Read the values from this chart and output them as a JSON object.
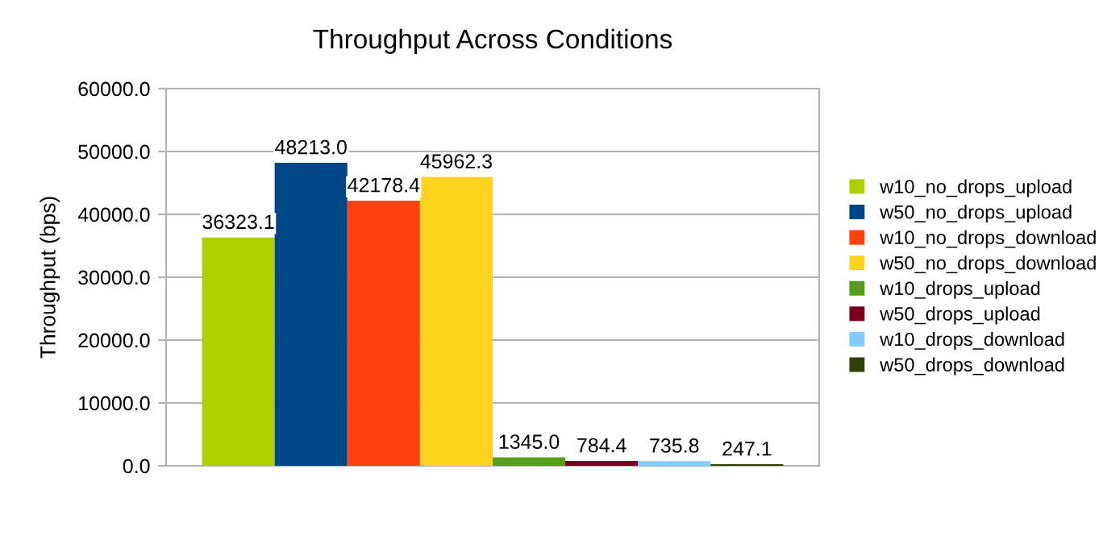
{
  "chart_data": {
    "type": "bar",
    "title": "Throughput Across Conditions",
    "ylabel": "Throughput (bps)",
    "categories": [
      null
    ],
    "series": [
      {
        "name": "w10_no_drops_upload",
        "color": "#aecf00",
        "values": [
          36323.1
        ],
        "value_labels": [
          "36323.1"
        ]
      },
      {
        "name": "w50_no_drops_upload",
        "color": "#004586",
        "values": [
          48213
        ],
        "value_labels": [
          "48213.0"
        ]
      },
      {
        "name": "w10_no_drops_download",
        "color": "#ff420e",
        "values": [
          42178.4
        ],
        "value_labels": [
          "42178.4"
        ]
      },
      {
        "name": "w50_no_drops_download",
        "color": "#ffd320",
        "values": [
          45962.3
        ],
        "value_labels": [
          "45962.3"
        ]
      },
      {
        "name": "w10_drops_upload",
        "color": "#579d1c",
        "values": [
          1345
        ],
        "value_labels": [
          "1345.0"
        ]
      },
      {
        "name": "w50_drops_upload",
        "color": "#7e0021",
        "values": [
          784.4
        ],
        "value_labels": [
          "784.4"
        ]
      },
      {
        "name": "w10_drops_download",
        "color": "#83caff",
        "values": [
          735.8
        ],
        "value_labels": [
          "735.8"
        ]
      },
      {
        "name": "w50_drops_download",
        "color": "#314004",
        "values": [
          247.1
        ],
        "value_labels": [
          "247.1"
        ]
      }
    ],
    "ylim": [
      0,
      60000
    ],
    "yticks": [
      {
        "value": 0,
        "label": "0.0"
      },
      {
        "value": 10000,
        "label": "10000.0"
      },
      {
        "value": 20000,
        "label": "20000.0"
      },
      {
        "value": 30000,
        "label": "30000.0"
      },
      {
        "value": 40000,
        "label": "40000.0"
      },
      {
        "value": 50000,
        "label": "50000.0"
      },
      {
        "value": 60000,
        "label": "60000.0"
      }
    ],
    "grid": "y",
    "legend": "right"
  }
}
